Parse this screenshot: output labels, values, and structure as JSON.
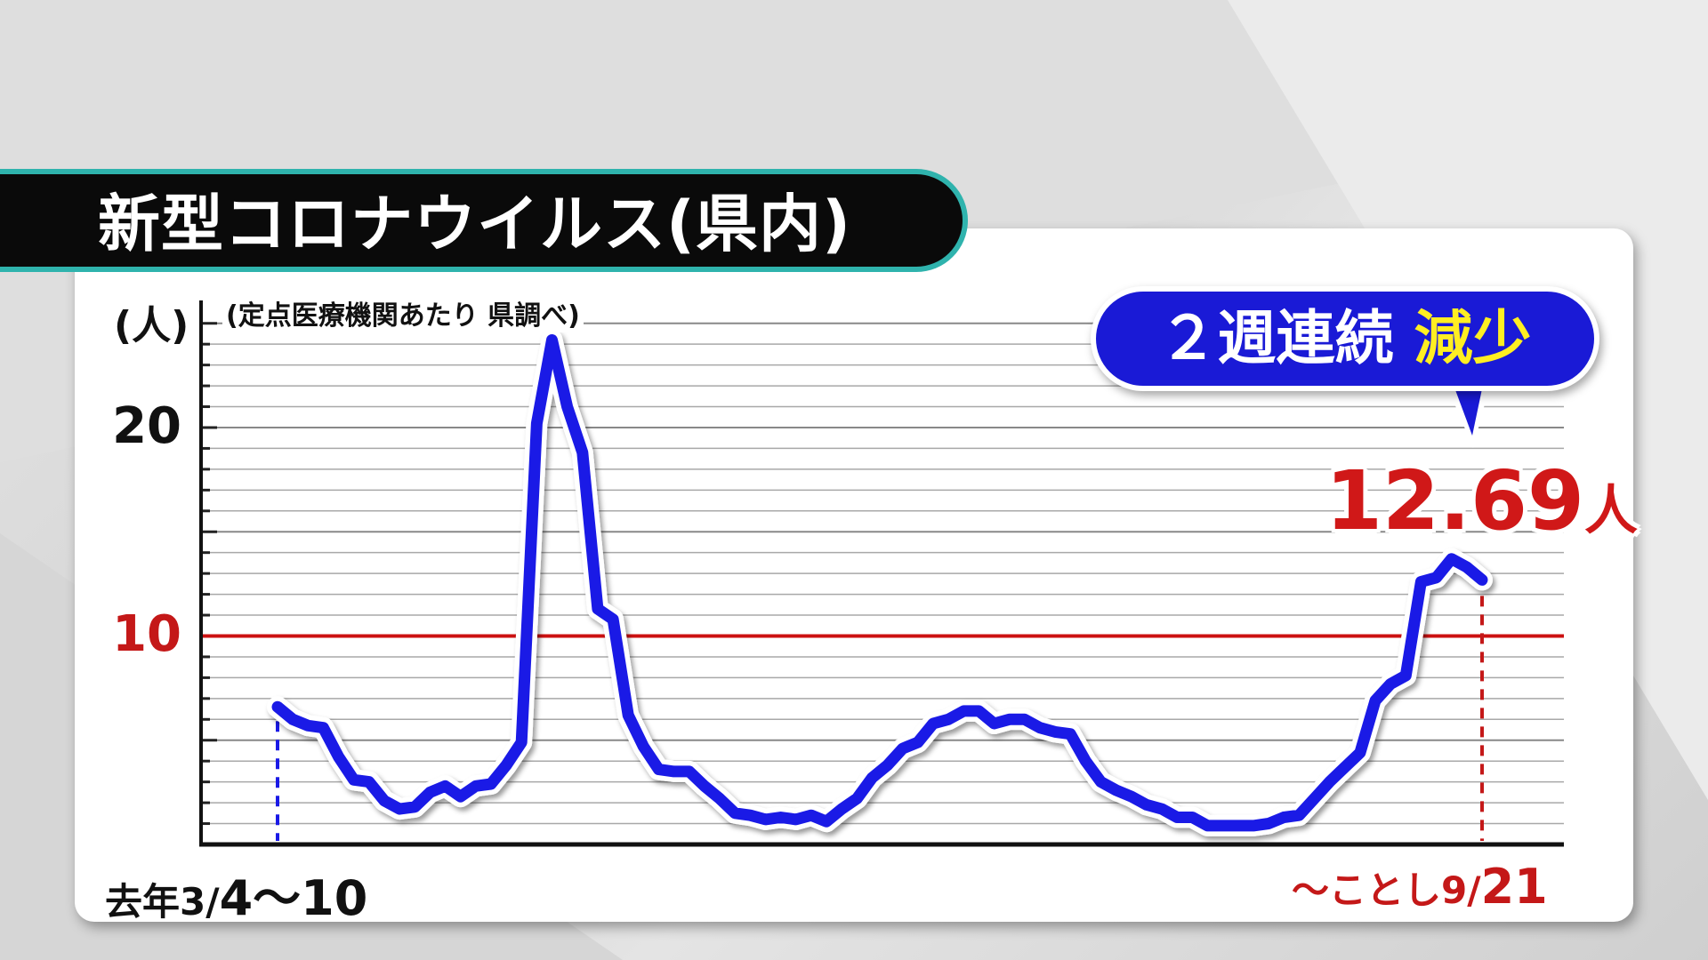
{
  "title": "新型コロナウイルス(県内)",
  "chart_data": {
    "type": "line",
    "ylabel": "(人)",
    "source_note": "(定点医療機関あたり 県調べ)",
    "ylim": [
      0,
      25.5
    ],
    "yticks": [
      {
        "value": 10,
        "label": "10"
      },
      {
        "value": 20,
        "label": "20"
      }
    ],
    "threshold": {
      "value": 10,
      "color": "#cc1111"
    },
    "x_start_label": {
      "prefix": "去年3/",
      "main": "4〜10"
    },
    "x_end_label": {
      "prefix": "〜ことし9/",
      "main": "21"
    },
    "series": [
      {
        "color": "#1a1ae6",
        "values": [
          6.6,
          6.0,
          5.7,
          5.6,
          4.2,
          3.1,
          3.0,
          2.1,
          1.7,
          1.8,
          2.5,
          2.8,
          2.3,
          2.8,
          2.9,
          3.8,
          4.9,
          20.2,
          24.2,
          21.0,
          18.8,
          11.3,
          10.8,
          6.2,
          4.7,
          3.6,
          3.5,
          3.5,
          2.8,
          2.2,
          1.5,
          1.4,
          1.2,
          1.3,
          1.2,
          1.4,
          1.1,
          1.7,
          2.2,
          3.2,
          3.8,
          4.6,
          4.9,
          5.8,
          6.0,
          6.4,
          6.4,
          5.8,
          6.0,
          6.0,
          5.6,
          5.4,
          5.3,
          4.0,
          3.0,
          2.6,
          2.3,
          1.9,
          1.7,
          1.3,
          1.3,
          0.9,
          0.9,
          0.9,
          0.9,
          1.0,
          1.3,
          1.4,
          2.2,
          3.0,
          3.7,
          4.4,
          6.9,
          7.7,
          8.1,
          12.6,
          12.8,
          13.7,
          13.3,
          12.69
        ]
      }
    ]
  },
  "callout": {
    "bubble_prefix": "２週連続",
    "bubble_highlight": "減少",
    "value": "12.69",
    "unit": "人"
  }
}
